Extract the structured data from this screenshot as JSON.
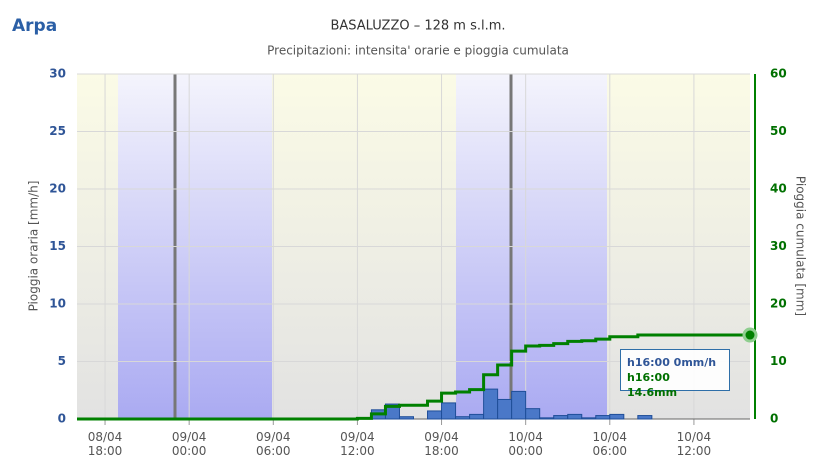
{
  "logo": "Arpa",
  "chart_data": {
    "type": "bar",
    "title": "BASALUZZO – 128 m s.l.m.",
    "subtitle": "Precipitazioni: intensita' orarie e pioggia cumulata",
    "ylabel": "Pioggia oraria [mm/h]",
    "y2label": "Pioggia cumulata [mm]",
    "x": [
      "08/04 16:00",
      "08/04 17:00",
      "08/04 18:00",
      "08/04 19:00",
      "08/04 20:00",
      "08/04 21:00",
      "08/04 22:00",
      "08/04 23:00",
      "09/04 00:00",
      "09/04 01:00",
      "09/04 02:00",
      "09/04 03:00",
      "09/04 04:00",
      "09/04 05:00",
      "09/04 06:00",
      "09/04 07:00",
      "09/04 08:00",
      "09/04 09:00",
      "09/04 10:00",
      "09/04 11:00",
      "09/04 12:00",
      "09/04 13:00",
      "09/04 14:00",
      "09/04 15:00",
      "09/04 16:00",
      "09/04 17:00",
      "09/04 18:00",
      "09/04 19:00",
      "09/04 20:00",
      "09/04 21:00",
      "09/04 22:00",
      "09/04 23:00",
      "10/04 00:00",
      "10/04 01:00",
      "10/04 02:00",
      "10/04 03:00",
      "10/04 04:00",
      "10/04 05:00",
      "10/04 06:00",
      "10/04 07:00",
      "10/04 08:00",
      "10/04 09:00",
      "10/04 10:00",
      "10/04 11:00",
      "10/04 12:00",
      "10/04 13:00",
      "10/04 14:00",
      "10/04 15:00",
      "10/04 16:00"
    ],
    "series": [
      {
        "type": "bar",
        "color": "#4a78c8",
        "values": [
          0,
          0,
          0,
          0,
          0,
          0,
          0,
          0,
          0,
          0,
          0,
          0,
          0,
          0,
          0,
          0,
          0,
          0,
          0,
          0,
          0.1,
          0.8,
          1.3,
          0.2,
          0,
          0.7,
          1.4,
          0.2,
          0.4,
          2.6,
          1.7,
          2.4,
          0.9,
          0.1,
          0.3,
          0.4,
          0.1,
          0.3,
          0.4,
          0,
          0.3,
          0,
          0,
          0,
          0,
          0,
          0,
          0,
          0
        ]
      },
      {
        "type": "line",
        "axis": "y2",
        "color": "#008000",
        "values": [
          0,
          0,
          0,
          0,
          0,
          0,
          0,
          0,
          0,
          0,
          0,
          0,
          0,
          0,
          0,
          0,
          0,
          0,
          0,
          0,
          0.1,
          0.9,
          2.2,
          2.4,
          2.4,
          3.1,
          4.5,
          4.7,
          5.1,
          7.7,
          9.4,
          11.8,
          12.7,
          12.8,
          13.1,
          13.5,
          13.6,
          13.9,
          14.3,
          14.3,
          14.6,
          14.6,
          14.6,
          14.6,
          14.6,
          14.6,
          14.6,
          14.6,
          14.6
        ]
      }
    ],
    "ylim": [
      0,
      30
    ],
    "yticks": [
      0,
      5,
      10,
      15,
      20,
      25,
      30
    ],
    "y2lim": [
      0,
      60
    ],
    "y2ticks": [
      0,
      10,
      20,
      30,
      40,
      50,
      60
    ],
    "xticks": [
      {
        "value": "08/04 18:00",
        "label": "08/04\n18:00"
      },
      {
        "value": "09/04 00:00",
        "label": "09/04\n00:00"
      },
      {
        "value": "09/04 06:00",
        "label": "09/04\n06:00"
      },
      {
        "value": "09/04 12:00",
        "label": "09/04\n12:00"
      },
      {
        "value": "09/04 18:00",
        "label": "09/04\n18:00"
      },
      {
        "value": "10/04 00:00",
        "label": "10/04\n00:00"
      },
      {
        "value": "10/04 06:00",
        "label": "10/04\n06:00"
      },
      {
        "value": "10/04 12:00",
        "label": "10/04\n12:00"
      }
    ],
    "grid": true,
    "tooltip": [
      "h16:00 0mm/h",
      "h16:00 14.6mm"
    ]
  }
}
